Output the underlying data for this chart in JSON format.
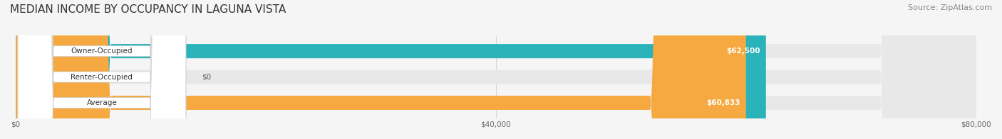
{
  "title": "MEDIAN INCOME BY OCCUPANCY IN LAGUNA VISTA",
  "source": "Source: ZipAtlas.com",
  "categories": [
    "Owner-Occupied",
    "Renter-Occupied",
    "Average"
  ],
  "values": [
    62500,
    0,
    60833
  ],
  "bar_colors": [
    "#2ab3b8",
    "#c9a8d4",
    "#f5a940"
  ],
  "label_colors": [
    "#2ab3b8",
    "#c9a8d4",
    "#f5a940"
  ],
  "value_labels": [
    "$62,500",
    "$0",
    "$60,833"
  ],
  "xlim": [
    0,
    80000
  ],
  "xticks": [
    0,
    40000,
    80000
  ],
  "xtick_labels": [
    "$0",
    "$40,000",
    "$80,000"
  ],
  "background_color": "#f5f5f5",
  "bar_bg_color": "#e8e8e8",
  "title_fontsize": 11,
  "source_fontsize": 8,
  "bar_height": 0.55,
  "fig_width": 14.06,
  "fig_height": 1.96
}
